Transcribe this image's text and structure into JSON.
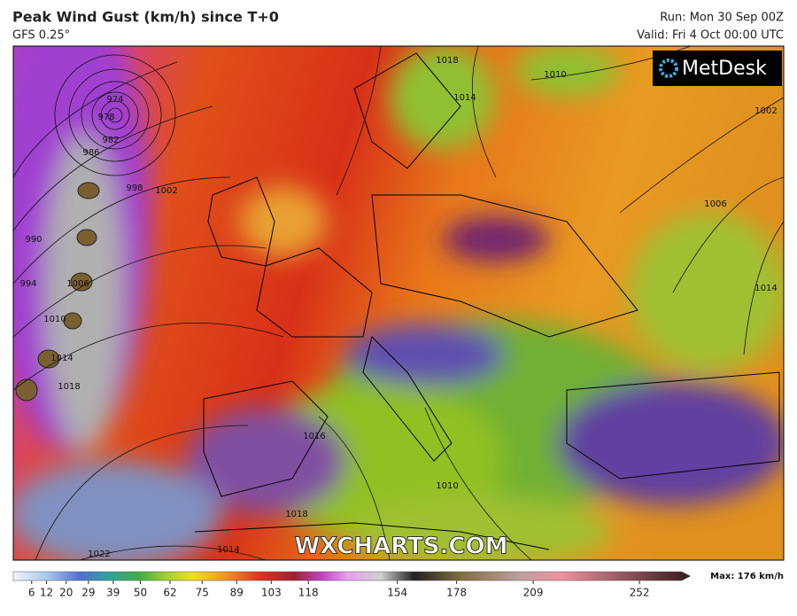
{
  "header": {
    "title": "Peak Wind Gust (km/h) since T+0",
    "subtitle": "GFS 0.25°",
    "run": "Run: Mon 30 Sep 00Z",
    "valid": "Valid: Fri 4 Oct 00:00 UTC"
  },
  "logo": "MetDesk",
  "watermark": "WXCHARTS.COM",
  "isobar_labels": [
    974,
    978,
    982,
    986,
    990,
    994,
    998,
    1002,
    1006,
    1010,
    1014,
    1018,
    1018,
    1014,
    1010,
    1002,
    1006,
    1014,
    1016,
    1010,
    1018,
    1014,
    1022
  ],
  "colorbar": {
    "ticks": [
      6,
      12,
      20,
      29,
      39,
      50,
      62,
      75,
      89,
      103,
      118,
      154,
      178,
      209,
      252
    ],
    "max_label": "Max: 176 km/h"
  }
}
